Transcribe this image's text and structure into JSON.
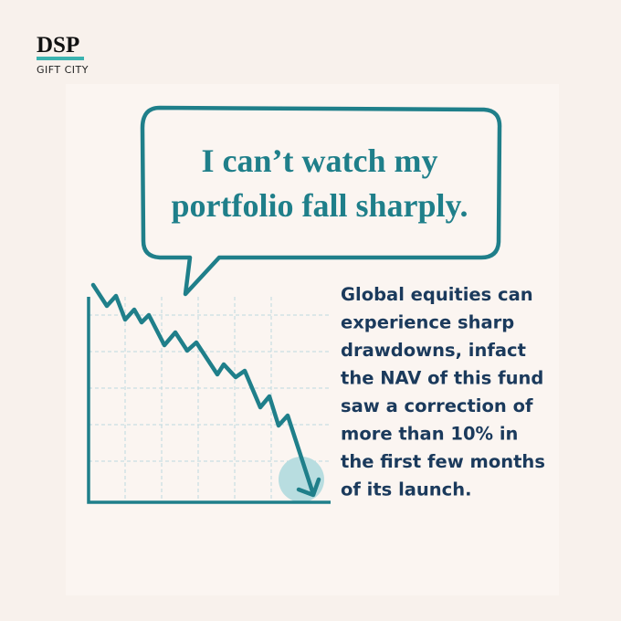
{
  "logo": {
    "brand": "DSP",
    "subtitle": "GIFT CITY"
  },
  "speech_bubble": {
    "lines": [
      "I can’t watch my",
      "portfolio fall sharply."
    ]
  },
  "body": {
    "lines": [
      "Global equities can",
      "experience sharp",
      "drawdowns, infact",
      "the NAV of this fund",
      "saw a correction of",
      "more than 10% in",
      "the first few months",
      "of its launch."
    ]
  }
}
